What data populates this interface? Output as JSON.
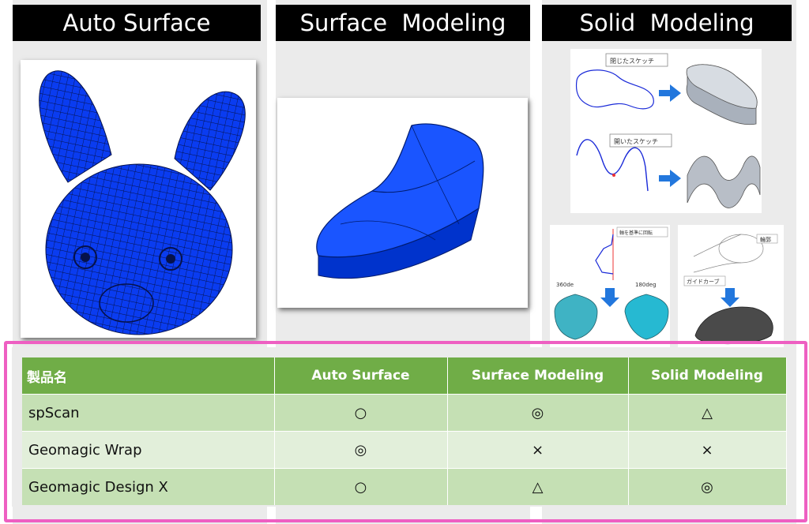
{
  "columns": {
    "auto_surface_title": "Auto Surface",
    "surface_modeling_title": "Surface  Modeling",
    "solid_modeling_title": "Solid  Modeling"
  },
  "illustrations": {
    "closed_sketch_label": "閉じたスケッチ",
    "open_sketch_label": "開いたスケッチ",
    "rotate_axis_label": "軸を基準に回転",
    "deg_360_label": "360de",
    "deg_180_label": "180deg",
    "profile_label": "輪郭",
    "guide_curve_label": "ガイドカーブ"
  },
  "table": {
    "headers": [
      "製品名",
      "Auto Surface",
      "Surface Modeling",
      "Solid Modeling"
    ],
    "rows": [
      [
        "spScan",
        "○",
        "◎",
        "△"
      ],
      [
        "Geomagic Wrap",
        "◎",
        "×",
        "×"
      ],
      [
        "Geomagic Design X",
        "○",
        "△",
        "◎"
      ]
    ]
  },
  "colors": {
    "header_green": "#70ad47",
    "row_dark": "#c5e0b4",
    "row_light": "#e2efda",
    "highlight_pink": "#ee5fc2",
    "model_blue": "#0044ee"
  },
  "icons": [
    "bunny-mesh-image",
    "shoe-surface-image",
    "arrow-right-icon",
    "arrow-down-icon"
  ]
}
